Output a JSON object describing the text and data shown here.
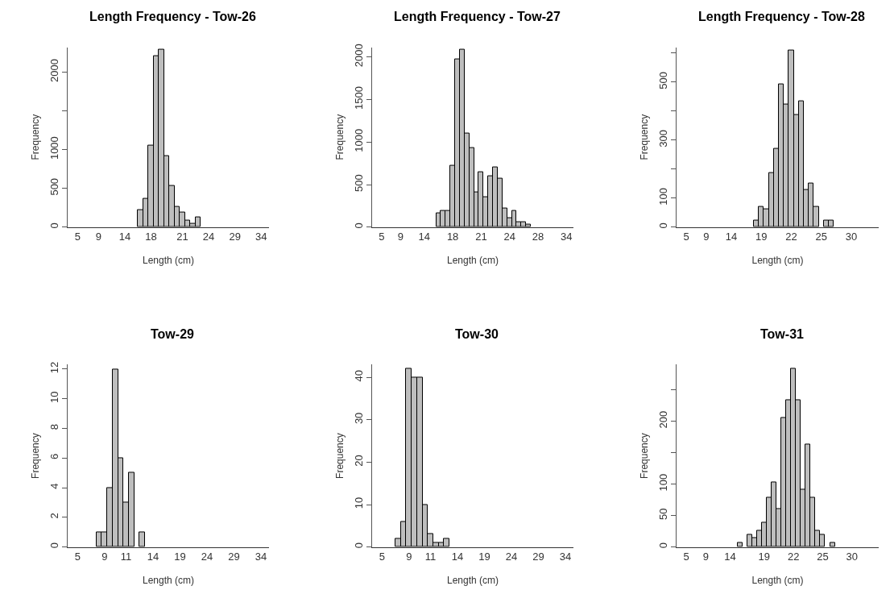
{
  "chart_data": [
    {
      "type": "bar",
      "title": "Length Frequency - Tow-26",
      "xlabel": "Length (cm)",
      "ylabel": "Frequency",
      "color": "#bebebe",
      "categories": [
        "5",
        null,
        null,
        null,
        "9",
        null,
        null,
        null,
        null,
        "14",
        null,
        null,
        null,
        null,
        "18",
        null,
        null,
        null,
        null,
        null,
        "21",
        null,
        null,
        null,
        null,
        "24",
        null,
        null,
        null,
        null,
        "29",
        null,
        null,
        null,
        null,
        "34",
        null
      ],
      "values": [
        0,
        0,
        0,
        0,
        0,
        0,
        0,
        0,
        0,
        0,
        0,
        0,
        220,
        370,
        1050,
        2210,
        2290,
        920,
        530,
        260,
        190,
        90,
        40,
        130,
        0,
        0,
        0,
        0,
        0,
        0,
        0,
        0,
        0,
        0,
        0,
        0,
        0
      ],
      "ylim": [
        0,
        2320
      ],
      "yticks": [
        0,
        500,
        1000,
        {
          "value": 1500,
          "label": null
        },
        2000
      ]
    },
    {
      "type": "bar",
      "title": "Length Frequency - Tow-27",
      "xlabel": "Length (cm)",
      "ylabel": "Frequency",
      "color": "#bebebe",
      "categories": [
        "5",
        null,
        null,
        null,
        "9",
        null,
        null,
        null,
        null,
        "14",
        null,
        null,
        null,
        null,
        null,
        "18",
        null,
        null,
        null,
        null,
        null,
        "21",
        null,
        null,
        null,
        null,
        null,
        "24",
        null,
        null,
        null,
        null,
        null,
        "28",
        null,
        null,
        null,
        null,
        null,
        "34",
        null
      ],
      "values": [
        0,
        0,
        0,
        0,
        0,
        0,
        0,
        0,
        0,
        0,
        0,
        0,
        160,
        190,
        190,
        720,
        1970,
        2090,
        1100,
        930,
        410,
        650,
        350,
        600,
        700,
        570,
        220,
        110,
        190,
        60,
        60,
        30,
        0,
        0,
        0,
        0,
        0,
        0,
        0,
        0,
        0
      ],
      "ylim": [
        0,
        2115
      ],
      "yticks": [
        0,
        500,
        1000,
        1500,
        2000
      ]
    },
    {
      "type": "bar",
      "title": "Length Frequency - Tow-28",
      "xlabel": "Length (cm)",
      "ylabel": "Frequency",
      "color": "#bebebe",
      "categories": [
        "5",
        null,
        null,
        null,
        "9",
        null,
        null,
        null,
        null,
        "14",
        null,
        null,
        null,
        null,
        null,
        "19",
        null,
        null,
        null,
        null,
        null,
        "22",
        null,
        null,
        null,
        null,
        null,
        "25",
        null,
        null,
        null,
        null,
        null,
        "30",
        null,
        null,
        null,
        null,
        null
      ],
      "values": [
        0,
        0,
        0,
        0,
        0,
        0,
        0,
        0,
        0,
        0,
        0,
        0,
        0,
        0,
        23,
        71,
        61,
        187,
        270,
        492,
        422,
        610,
        388,
        433,
        128,
        152,
        71,
        0,
        23,
        23,
        0,
        0,
        0,
        0,
        0,
        0,
        0,
        0,
        0
      ],
      "ylim": [
        0,
        620
      ],
      "yticks": [
        0,
        100,
        {
          "value": 200,
          "label": null
        },
        300,
        {
          "value": 400,
          "label": null
        },
        500,
        {
          "value": 600,
          "label": null
        }
      ]
    },
    {
      "type": "bar",
      "title": "Tow-29",
      "xlabel": "Length (cm)",
      "ylabel": "Frequency",
      "color": "#bebebe",
      "categories": [
        "5",
        null,
        null,
        null,
        null,
        "9",
        null,
        null,
        null,
        "11",
        null,
        null,
        null,
        null,
        "14",
        null,
        null,
        null,
        null,
        "19",
        null,
        null,
        null,
        null,
        "24",
        null,
        null,
        null,
        null,
        "29",
        null,
        null,
        null,
        null,
        "34",
        null
      ],
      "values": [
        0,
        0,
        0,
        0,
        1,
        1,
        4,
        12,
        6,
        3,
        5,
        0,
        1,
        0,
        0,
        0,
        0,
        0,
        0,
        0,
        0,
        0,
        0,
        0,
        0,
        0,
        0,
        0,
        0,
        0,
        0,
        0,
        0,
        0,
        0,
        0
      ],
      "ylim": [
        0,
        12.3
      ],
      "yticks": [
        0,
        2,
        4,
        6,
        8,
        10,
        12
      ]
    },
    {
      "type": "bar",
      "title": "Tow-30",
      "xlabel": "Length (cm)",
      "ylabel": "Frequency",
      "color": "#bebebe",
      "categories": [
        "5",
        null,
        null,
        null,
        null,
        "9",
        null,
        null,
        null,
        "11",
        null,
        null,
        null,
        null,
        "14",
        null,
        null,
        null,
        null,
        "19",
        null,
        null,
        null,
        null,
        "24",
        null,
        null,
        null,
        null,
        "29",
        null,
        null,
        null,
        null,
        "34",
        null
      ],
      "values": [
        0,
        0,
        0,
        2,
        6,
        42,
        40,
        40,
        10,
        3,
        1,
        1,
        2,
        0,
        0,
        0,
        0,
        0,
        0,
        0,
        0,
        0,
        0,
        0,
        0,
        0,
        0,
        0,
        0,
        0,
        0,
        0,
        0,
        0,
        0,
        0
      ],
      "ylim": [
        0,
        43
      ],
      "yticks": [
        0,
        10,
        20,
        30,
        40
      ]
    },
    {
      "type": "bar",
      "title": "Tow-31",
      "xlabel": "Length (cm)",
      "ylabel": "Frequency",
      "color": "#bebebe",
      "categories": [
        "5",
        null,
        null,
        null,
        "9",
        null,
        null,
        null,
        null,
        "14",
        null,
        null,
        null,
        null,
        null,
        null,
        "19",
        null,
        null,
        null,
        null,
        null,
        "22",
        null,
        null,
        null,
        null,
        null,
        "25",
        null,
        null,
        null,
        null,
        null,
        "30",
        null,
        null,
        null,
        null,
        null
      ],
      "values": [
        0,
        0,
        0,
        0,
        0,
        0,
        0,
        0,
        0,
        0,
        0,
        7,
        0,
        20,
        14,
        26,
        39,
        78,
        103,
        60,
        206,
        233,
        284,
        233,
        91,
        163,
        78,
        26,
        20,
        0,
        7,
        0,
        0,
        0,
        0,
        0,
        0,
        0,
        0,
        0
      ],
      "ylim": [
        0,
        290
      ],
      "yticks": [
        0,
        50,
        100,
        {
          "value": 150,
          "label": null
        },
        200,
        {
          "value": 250,
          "label": null
        }
      ]
    }
  ]
}
